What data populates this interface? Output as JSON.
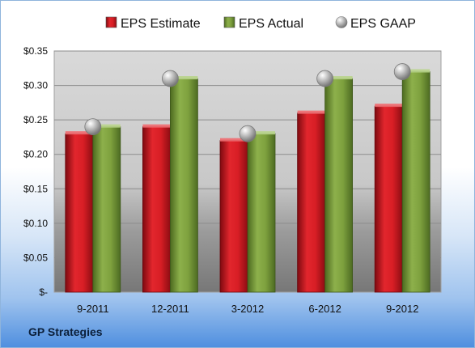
{
  "chart_data": {
    "type": "bar",
    "categories": [
      "9-2011",
      "12-2011",
      "3-2012",
      "6-2012",
      "9-2012"
    ],
    "series": [
      {
        "name": "EPS Estimate",
        "values": [
          0.23,
          0.24,
          0.22,
          0.26,
          0.27
        ],
        "color": "#cc1d24"
      },
      {
        "name": "EPS Actual",
        "values": [
          0.24,
          0.31,
          0.23,
          0.31,
          0.32
        ],
        "color": "#789c3a"
      },
      {
        "name": "EPS GAAP",
        "values": [
          0.24,
          0.31,
          0.23,
          0.31,
          0.32
        ],
        "color": "#a8a8a8",
        "marker": "sphere"
      }
    ],
    "ylim": [
      0,
      0.35
    ],
    "yticks": [
      0,
      0.05,
      0.1,
      0.15,
      0.2,
      0.25,
      0.3,
      0.35
    ],
    "ytick_labels": [
      "$-",
      "$0.05",
      "$0.10",
      "$0.15",
      "$0.20",
      "$0.25",
      "$0.30",
      "$0.35"
    ],
    "grid": true,
    "legend_position": "top",
    "source_label": "GP Strategies"
  }
}
